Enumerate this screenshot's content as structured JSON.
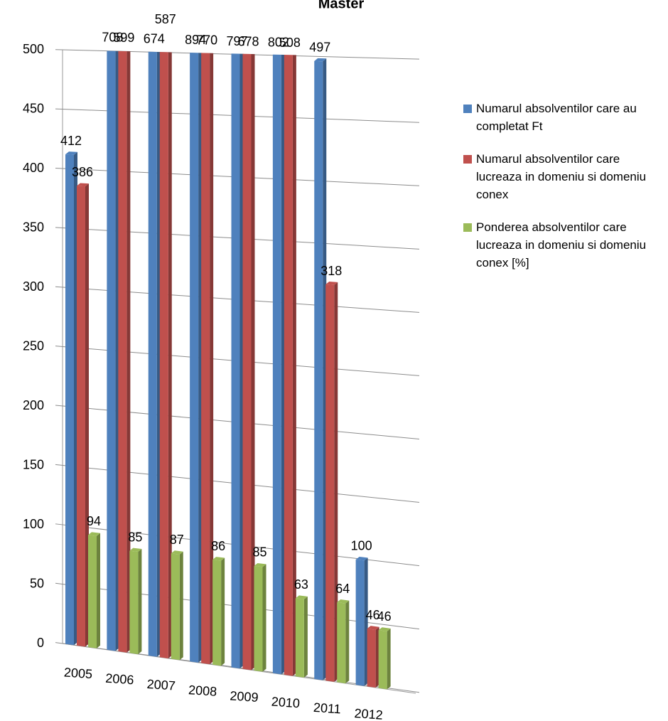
{
  "chart_data": {
    "type": "bar3d",
    "title": "Master",
    "categories": [
      "2005",
      "2006",
      "2007",
      "2008",
      "2009",
      "2010",
      "2011",
      "2012"
    ],
    "series": [
      {
        "name": "Numarul absolventilor care au completat Ft",
        "color": "#4f81bd",
        "values": [
          412,
          708,
          674,
          894,
          797,
          802,
          497,
          100
        ]
      },
      {
        "name": "Numarul absolventilor care lucreaza in domeniu si domeniu conex",
        "color": "#c0504d",
        "values": [
          386,
          599,
          587,
          770,
          678,
          508,
          318,
          46
        ]
      },
      {
        "name": "Ponderea absolventilor care lucreaza in domeniu si domeniu conex [%]",
        "color": "#9bbb59",
        "values": [
          94,
          85,
          87,
          86,
          85,
          63,
          64,
          46
        ]
      }
    ],
    "ylim": [
      0,
      500
    ],
    "yticks": [
      0,
      50,
      100,
      150,
      200,
      250,
      300,
      350,
      400,
      450,
      500
    ],
    "grid": true
  }
}
